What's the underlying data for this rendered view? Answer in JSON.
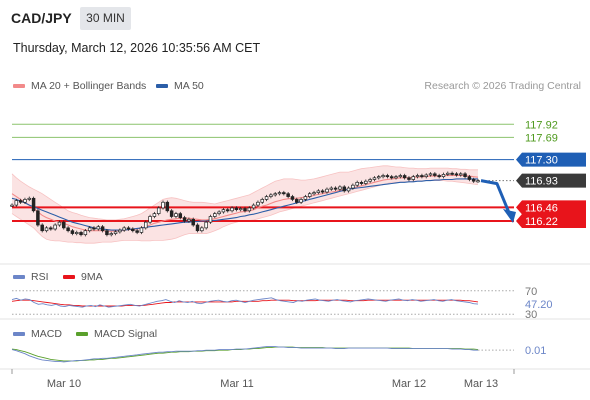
{
  "header": {
    "pair": "CAD/JPY",
    "timeframe": "30 MIN",
    "datetime": "Thursday, March 12, 2026 10:35:56 AM CET"
  },
  "credit": "Research © 2026 Trading Central",
  "legend": {
    "main_1": "MA 20 + Bollinger Bands",
    "main_2": "MA 50",
    "rsi_1": "RSI",
    "rsi_2": "9MA",
    "macd_1": "MACD",
    "macd_2": "MACD Signal"
  },
  "colors": {
    "ma20": "#f28a8a",
    "ma50": "#2b5ea8",
    "bollinger_fill": "#fbe3e3",
    "candle": "#222222",
    "resistance_green": "#8cc36d",
    "pivot_blue": "#1f5fb5",
    "support_red": "#e8141b",
    "price_dark": "#3a3a3a",
    "rsi": "#6c86c8",
    "macd": "#6c86c8",
    "macd_signal": "#5aa02c"
  },
  "chart_data": [
    {
      "type": "line",
      "panel": "price",
      "ylim": [
        115.5,
        118.4
      ],
      "x_labels": [
        "Mar 10",
        "Mar 11",
        "Mar 12",
        "Mar 13"
      ],
      "levels": [
        {
          "value": 117.92,
          "label": "117.92",
          "role": "resistance"
        },
        {
          "value": 117.69,
          "label": "117.69",
          "role": "resistance"
        },
        {
          "value": 117.3,
          "label": "117.30",
          "role": "pivot"
        },
        {
          "value": 116.93,
          "label": "116.93",
          "role": "last"
        },
        {
          "value": 116.46,
          "label": "116.46",
          "role": "support"
        },
        {
          "value": 116.22,
          "label": "116.22",
          "role": "support"
        }
      ],
      "close": [
        116.5,
        116.58,
        116.55,
        116.6,
        116.62,
        116.4,
        116.15,
        116.05,
        116.1,
        116.08,
        116.15,
        116.2,
        116.1,
        116.05,
        116.0,
        116.02,
        115.98,
        116.05,
        116.1,
        116.08,
        116.12,
        116.05,
        115.98,
        116.0,
        116.03,
        116.06,
        116.1,
        116.08,
        116.05,
        116.02,
        116.1,
        116.2,
        116.3,
        116.35,
        116.45,
        116.55,
        116.4,
        116.3,
        116.35,
        116.28,
        116.22,
        116.25,
        116.15,
        116.05,
        116.1,
        116.2,
        116.3,
        116.35,
        116.38,
        116.42,
        116.4,
        116.45,
        116.42,
        116.44,
        116.4,
        116.45,
        116.5,
        116.55,
        116.6,
        116.65,
        116.68,
        116.7,
        116.72,
        116.7,
        116.65,
        116.6,
        116.55,
        116.6,
        116.65,
        116.7,
        116.72,
        116.75,
        116.73,
        116.78,
        116.8,
        116.78,
        116.82,
        116.75,
        116.8,
        116.85,
        116.9,
        116.88,
        116.92,
        116.95,
        116.98,
        117.0,
        117.02,
        117.0,
        116.98,
        117.0,
        117.02,
        116.98,
        116.95,
        117.0,
        117.02,
        117.0,
        117.03,
        117.05,
        117.02,
        117.0,
        117.04,
        117.06,
        117.05,
        117.03,
        117.05,
        117.0,
        116.95,
        116.92,
        116.93
      ],
      "ma20": [
        116.7,
        116.65,
        116.6,
        116.55,
        116.5,
        116.45,
        116.38,
        116.32,
        116.28,
        116.25,
        116.22,
        116.2,
        116.18,
        116.15,
        116.12,
        116.1,
        116.08,
        116.06,
        116.05,
        116.05,
        116.05,
        116.05,
        116.04,
        116.04,
        116.05,
        116.05,
        116.06,
        116.07,
        116.07,
        116.08,
        116.1,
        116.12,
        116.15,
        116.18,
        116.2,
        116.22,
        116.24,
        116.25,
        116.26,
        116.27,
        116.27,
        116.27,
        116.26,
        116.25,
        116.24,
        116.24,
        116.25,
        116.26,
        116.28,
        116.3,
        116.32,
        116.34,
        116.36,
        116.38,
        116.39,
        116.4,
        116.42,
        116.45,
        116.48,
        116.5,
        116.53,
        116.56,
        116.58,
        116.6,
        116.61,
        116.62,
        116.62,
        116.63,
        116.64,
        116.65,
        116.67,
        116.69,
        116.7,
        116.72,
        116.73,
        116.74,
        116.76,
        116.77,
        116.78,
        116.8,
        116.82,
        116.84,
        116.86,
        116.88,
        116.9,
        116.92,
        116.94,
        116.95,
        116.96,
        116.97,
        116.98,
        116.98,
        116.98,
        116.99,
        116.99,
        117.0,
        117.0,
        117.01,
        117.01,
        117.01,
        117.02,
        117.02,
        117.02,
        117.02,
        117.02,
        117.02,
        117.01,
        117.0,
        116.99
      ],
      "bb_upper": [
        117.05,
        116.98,
        116.92,
        116.87,
        116.82,
        116.78,
        116.74,
        116.7,
        116.65,
        116.6,
        116.55,
        116.5,
        116.45,
        116.4,
        116.37,
        116.35,
        116.32,
        116.3,
        116.28,
        116.27,
        116.26,
        116.25,
        116.24,
        116.24,
        116.24,
        116.25,
        116.26,
        116.28,
        116.3,
        116.32,
        116.35,
        116.4,
        116.45,
        116.5,
        116.55,
        116.6,
        116.62,
        116.63,
        116.62,
        116.6,
        116.58,
        116.56,
        116.55,
        116.55,
        116.55,
        116.54,
        116.53,
        116.52,
        116.54,
        116.56,
        116.58,
        116.6,
        116.62,
        116.64,
        116.66,
        116.68,
        116.72,
        116.76,
        116.8,
        116.84,
        116.88,
        116.92,
        116.94,
        116.96,
        116.96,
        116.96,
        116.95,
        116.94,
        116.94,
        116.95,
        116.96,
        116.98,
        117.0,
        117.02,
        117.04,
        117.06,
        117.08,
        117.08,
        117.08,
        117.1,
        117.12,
        117.14,
        117.15,
        117.16,
        117.17,
        117.18,
        117.19,
        117.19,
        117.18,
        117.17,
        117.17,
        117.16,
        117.15,
        117.15,
        117.14,
        117.14,
        117.14,
        117.15,
        117.15,
        117.15,
        117.15,
        117.15,
        117.14,
        117.14,
        117.13,
        117.13,
        117.12,
        117.12,
        117.12
      ],
      "bb_lower": [
        116.35,
        116.3,
        116.25,
        116.2,
        116.15,
        116.1,
        116.02,
        115.95,
        115.9,
        115.88,
        115.87,
        115.87,
        115.86,
        115.85,
        115.85,
        115.84,
        115.84,
        115.83,
        115.83,
        115.83,
        115.84,
        115.85,
        115.85,
        115.85,
        115.86,
        115.87,
        115.88,
        115.88,
        115.88,
        115.88,
        115.87,
        115.87,
        115.87,
        115.88,
        115.88,
        115.88,
        115.89,
        115.9,
        115.92,
        115.95,
        115.98,
        116.0,
        116.0,
        116.0,
        116.0,
        116.0,
        116.02,
        116.05,
        116.08,
        116.12,
        116.15,
        116.18,
        116.2,
        116.22,
        116.22,
        116.23,
        116.24,
        116.26,
        116.28,
        116.3,
        116.32,
        116.35,
        116.38,
        116.4,
        116.42,
        116.44,
        116.46,
        116.48,
        116.5,
        116.52,
        116.54,
        116.56,
        116.58,
        116.6,
        116.62,
        116.64,
        116.66,
        116.68,
        116.7,
        116.72,
        116.74,
        116.76,
        116.78,
        116.8,
        116.82,
        116.84,
        116.86,
        116.88,
        116.9,
        116.9,
        116.9,
        116.91,
        116.91,
        116.92,
        116.92,
        116.92,
        116.93,
        116.93,
        116.93,
        116.93,
        116.93,
        116.92,
        116.92,
        116.91,
        116.9,
        116.89,
        116.88,
        116.87,
        116.86
      ],
      "ma50": [
        116.62,
        116.6,
        116.57,
        116.54,
        116.5,
        116.47,
        116.44,
        116.41,
        116.38,
        116.35,
        116.32,
        116.29,
        116.26,
        116.23,
        116.2,
        116.18,
        116.16,
        116.14,
        116.12,
        116.1,
        116.09,
        116.08,
        116.07,
        116.06,
        116.06,
        116.06,
        116.06,
        116.07,
        116.08,
        116.09,
        116.1,
        116.11,
        116.12,
        116.13,
        116.14,
        116.15,
        116.16,
        116.17,
        116.18,
        116.19,
        116.2,
        116.2,
        116.21,
        116.21,
        116.22,
        116.22,
        116.23,
        116.23,
        116.24,
        116.25,
        116.26,
        116.27,
        116.28,
        116.3,
        116.31,
        116.33,
        116.34,
        116.36,
        116.38,
        116.4,
        116.42,
        116.44,
        116.46,
        116.48,
        116.5,
        116.52,
        116.54,
        116.56,
        116.58,
        116.6,
        116.62,
        116.64,
        116.66,
        116.68,
        116.7,
        116.72,
        116.74,
        116.76,
        116.78,
        116.79,
        116.8,
        116.81,
        116.82,
        116.83,
        116.84,
        116.85,
        116.86,
        116.87,
        116.88,
        116.89,
        116.9,
        116.9,
        116.91,
        116.91,
        116.92,
        116.92,
        116.93,
        116.93,
        116.94,
        116.94,
        116.95,
        116.95,
        116.95,
        116.96,
        116.96,
        116.96,
        116.96,
        116.96,
        116.96
      ],
      "forecast": [
        116.93,
        116.46,
        116.22
      ]
    },
    {
      "type": "line",
      "panel": "rsi",
      "ylim": [
        27,
        73
      ],
      "levels": [
        {
          "value": 70,
          "label": "70"
        },
        {
          "value": 30,
          "label": "30"
        }
      ],
      "last_label": "47.20",
      "series": [
        {
          "name": "RSI",
          "values": [
            55,
            57,
            54,
            56,
            55,
            50,
            47,
            48,
            46,
            45,
            47,
            44,
            43,
            45,
            44,
            43,
            42,
            44,
            45,
            43,
            46,
            44,
            42,
            43,
            44,
            45,
            46,
            47,
            45,
            44,
            46,
            48,
            50,
            52,
            53,
            55,
            52,
            50,
            53,
            51,
            50,
            52,
            49,
            48,
            50,
            52,
            53,
            54,
            52,
            51,
            53,
            54,
            52,
            50,
            52,
            54,
            55,
            56,
            57,
            58,
            55,
            53,
            52,
            51,
            50,
            53,
            52,
            54,
            55,
            56,
            54,
            53,
            52,
            54,
            55,
            53,
            52,
            51,
            53,
            54,
            55,
            56,
            55,
            54,
            53,
            52,
            54,
            55,
            56,
            54,
            53,
            55,
            54,
            52,
            53,
            54,
            55,
            53,
            52,
            54,
            55,
            53,
            52,
            51,
            50,
            48,
            47.2
          ]
        },
        {
          "name": "9MA",
          "values": [
            52,
            53,
            54,
            54,
            54,
            53,
            52,
            51,
            50,
            49,
            48,
            47,
            46,
            46,
            45,
            45,
            44,
            44,
            44,
            44,
            44,
            44,
            44,
            44,
            44,
            44,
            45,
            45,
            45,
            45,
            45,
            46,
            47,
            48,
            49,
            50,
            50,
            51,
            51,
            51,
            51,
            51,
            51,
            51,
            51,
            51,
            51,
            51,
            51,
            51,
            51,
            52,
            52,
            52,
            52,
            52,
            52,
            53,
            53,
            54,
            54,
            54,
            54,
            54,
            53,
            53,
            53,
            53,
            53,
            53,
            54,
            54,
            54,
            54,
            54,
            54,
            54,
            53,
            53,
            53,
            53,
            54,
            54,
            54,
            54,
            54,
            54,
            54,
            54,
            54,
            54,
            54,
            54,
            54,
            54,
            54,
            54,
            54,
            54,
            54,
            54,
            54,
            54,
            53,
            53,
            52,
            51
          ]
        }
      ]
    },
    {
      "type": "line",
      "panel": "macd",
      "ylim": [
        -0.3,
        0.15
      ],
      "last_label": "0.01",
      "series": [
        {
          "name": "MACD",
          "values": [
            0.02,
            0.0,
            -0.03,
            -0.06,
            -0.1,
            -0.13,
            -0.16,
            -0.18,
            -0.19,
            -0.2,
            -0.21,
            -0.21,
            -0.22,
            -0.21,
            -0.2,
            -0.19,
            -0.19,
            -0.18,
            -0.17,
            -0.16,
            -0.16,
            -0.15,
            -0.15,
            -0.14,
            -0.13,
            -0.12,
            -0.11,
            -0.1,
            -0.09,
            -0.08,
            -0.07,
            -0.06,
            -0.05,
            -0.04,
            -0.03,
            -0.03,
            -0.02,
            -0.02,
            -0.01,
            -0.01,
            -0.01,
            -0.01,
            -0.01,
            0.0,
            0.0,
            0.01,
            0.01,
            0.01,
            0.02,
            0.02,
            0.02,
            0.02,
            0.03,
            0.03,
            0.03,
            0.04,
            0.05,
            0.06,
            0.07,
            0.08,
            0.08,
            0.08,
            0.07,
            0.07,
            0.06,
            0.06,
            0.06,
            0.05,
            0.05,
            0.05,
            0.05,
            0.05,
            0.05,
            0.05,
            0.05,
            0.04,
            0.04,
            0.04,
            0.05,
            0.05,
            0.05,
            0.05,
            0.05,
            0.05,
            0.05,
            0.05,
            0.05,
            0.05,
            0.04,
            0.04,
            0.04,
            0.04,
            0.04,
            0.04,
            0.04,
            0.04,
            0.04,
            0.04,
            0.04,
            0.04,
            0.04,
            0.04,
            0.03,
            0.03,
            0.03,
            0.02,
            0.02,
            0.01,
            0.01
          ]
        },
        {
          "name": "MACD Signal",
          "values": [
            0.03,
            0.02,
            0.0,
            -0.02,
            -0.05,
            -0.08,
            -0.11,
            -0.13,
            -0.15,
            -0.17,
            -0.18,
            -0.19,
            -0.2,
            -0.2,
            -0.2,
            -0.2,
            -0.19,
            -0.19,
            -0.18,
            -0.18,
            -0.17,
            -0.17,
            -0.16,
            -0.15,
            -0.15,
            -0.14,
            -0.13,
            -0.12,
            -0.11,
            -0.1,
            -0.09,
            -0.08,
            -0.07,
            -0.06,
            -0.05,
            -0.05,
            -0.04,
            -0.03,
            -0.03,
            -0.02,
            -0.02,
            -0.02,
            -0.01,
            -0.01,
            -0.01,
            0.0,
            0.0,
            0.0,
            0.01,
            0.01,
            0.01,
            0.02,
            0.02,
            0.02,
            0.03,
            0.03,
            0.04,
            0.04,
            0.05,
            0.06,
            0.06,
            0.07,
            0.07,
            0.07,
            0.07,
            0.07,
            0.06,
            0.06,
            0.06,
            0.06,
            0.06,
            0.06,
            0.06,
            0.05,
            0.05,
            0.05,
            0.05,
            0.05,
            0.05,
            0.05,
            0.05,
            0.05,
            0.05,
            0.05,
            0.05,
            0.05,
            0.05,
            0.05,
            0.05,
            0.05,
            0.05,
            0.05,
            0.05,
            0.04,
            0.04,
            0.04,
            0.04,
            0.04,
            0.04,
            0.04,
            0.04,
            0.04,
            0.04,
            0.04,
            0.04,
            0.03,
            0.03,
            0.03,
            0.02
          ]
        }
      ]
    }
  ]
}
